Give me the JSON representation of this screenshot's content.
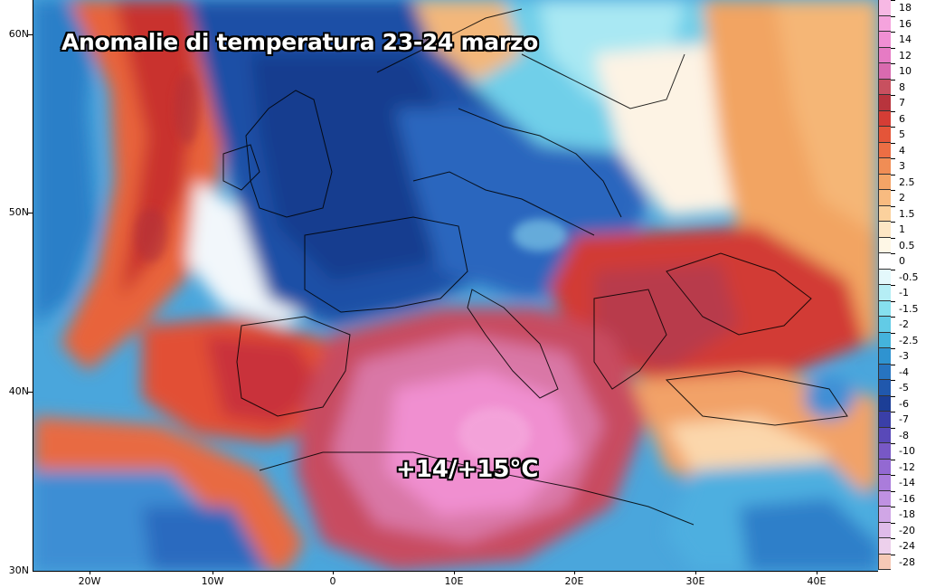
{
  "title": "Anomalie di temperatura 23-24 marzo",
  "annotation": "+14/+15°C",
  "latitude_labels": [
    "60N",
    "50N",
    "40N",
    "30N"
  ],
  "longitude_labels": [
    "20W",
    "10W",
    "0",
    "10E",
    "20E",
    "30E",
    "40E"
  ],
  "colorbar": {
    "labels": [
      "18",
      "16",
      "14",
      "12",
      "10",
      "8",
      "7",
      "6",
      "5",
      "4",
      "3",
      "2.5",
      "2",
      "1.5",
      "1",
      "0.5",
      "0",
      "-0.5",
      "-1",
      "-1.5",
      "-2",
      "-2.5",
      "-3",
      "-4",
      "-5",
      "-6",
      "-7",
      "-8",
      "-10",
      "-12",
      "-14",
      "-16",
      "-18",
      "-20",
      "-24",
      "-28"
    ],
    "colors": [
      "#f7b8e4",
      "#f5a3dd",
      "#f08fd3",
      "#e67bc4",
      "#d96aaf",
      "#c8505f",
      "#b8343d",
      "#d53d35",
      "#e45539",
      "#ec6e44",
      "#f08d55",
      "#f4a466",
      "#f8bb80",
      "#fbd19d",
      "#fde6c4",
      "#fef7e6",
      "#ffffff",
      "#e4f8fb",
      "#b5eef5",
      "#86e0ef",
      "#62cbe6",
      "#44b3dc",
      "#2f93d0",
      "#2774c0",
      "#2058ad",
      "#1c3e96",
      "#3a3fa8",
      "#5949b8",
      "#7858c6",
      "#9369d2",
      "#aa7cdb",
      "#bf91e2",
      "#d0a6e6",
      "#dfbbe9",
      "#edd0ec",
      "#f6c9b6"
    ]
  }
}
